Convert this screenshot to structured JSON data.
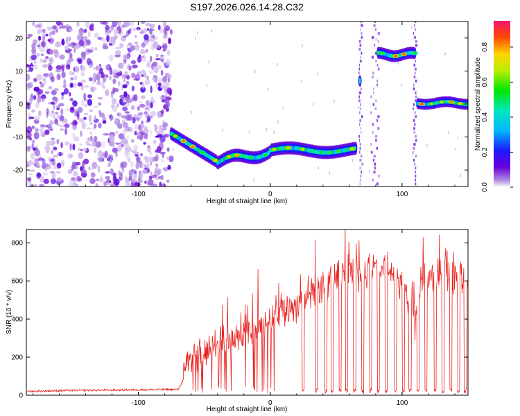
{
  "title": "S197.2026.026.14.28.C32",
  "colors": {
    "snr_line": "#e8221f",
    "axis": "#000000",
    "background": "#ffffff"
  },
  "chart_data": [
    {
      "type": "heatmap",
      "title": "S197.2026.026.14.28.C32",
      "xlabel": "Height of straight line (km)",
      "ylabel": "Frequency (Hz)",
      "xlim": [
        -185,
        150
      ],
      "ylim": [
        -25,
        25
      ],
      "x_ticks": [
        -100,
        0,
        100
      ],
      "y_ticks": [
        -20,
        -10,
        0,
        10,
        20
      ],
      "grid": false,
      "colorbar": {
        "label": "Normalized spectral amplitude",
        "range": [
          0,
          0.95
        ],
        "ticks": [
          0.0,
          0.2,
          0.4,
          0.6,
          0.8
        ],
        "colormap": "rainbow (white/purple low, red/magenta high)"
      },
      "features": [
        {
          "name": "noise",
          "x_range": [
            -185,
            -75
          ],
          "freq_range": [
            -25,
            25
          ],
          "amplitude": 0.1
        },
        {
          "name": "track",
          "x_range": [
            -75,
            65
          ],
          "freq_start": -9,
          "freq_dip": -17.5,
          "freq_end": -14,
          "peak_amplitude": 0.9
        },
        {
          "name": "jump-upper",
          "x_range": [
            82,
            110
          ],
          "freq": 15,
          "peak_amplitude": 0.95
        },
        {
          "name": "track-final",
          "x_range": [
            112,
            150
          ],
          "freq": 0.3,
          "peak_amplitude": 0.95
        }
      ]
    },
    {
      "type": "line",
      "xlabel": "Height of straight line (km)",
      "ylabel": "SNR (10 * v/v)",
      "xlim": [
        -185,
        150
      ],
      "ylim": [
        0,
        870
      ],
      "x_ticks": [
        -100,
        0,
        100
      ],
      "y_ticks": [
        0,
        200,
        400,
        600,
        800
      ],
      "grid": false,
      "series": [
        {
          "x": [
            -185,
            -150,
            -100,
            -80,
            -70,
            -66,
            -62,
            -55,
            -45,
            -35,
            -25,
            -15,
            -5,
            0,
            10,
            20,
            30,
            40,
            50,
            60,
            70,
            80,
            90,
            100,
            105,
            110,
            115,
            120,
            130,
            140,
            150
          ],
          "values": [
            20,
            25,
            28,
            30,
            30,
            80,
            180,
            220,
            250,
            280,
            300,
            330,
            360,
            390,
            440,
            480,
            530,
            560,
            620,
            650,
            640,
            660,
            650,
            600,
            480,
            380,
            600,
            620,
            640,
            620,
            600
          ],
          "note_dropouts": [
            25,
            35,
            42,
            47,
            53,
            58,
            64,
            70,
            76,
            82,
            88,
            95,
            101,
            106,
            112,
            118,
            125,
            131,
            137,
            143,
            148
          ]
        }
      ]
    }
  ]
}
